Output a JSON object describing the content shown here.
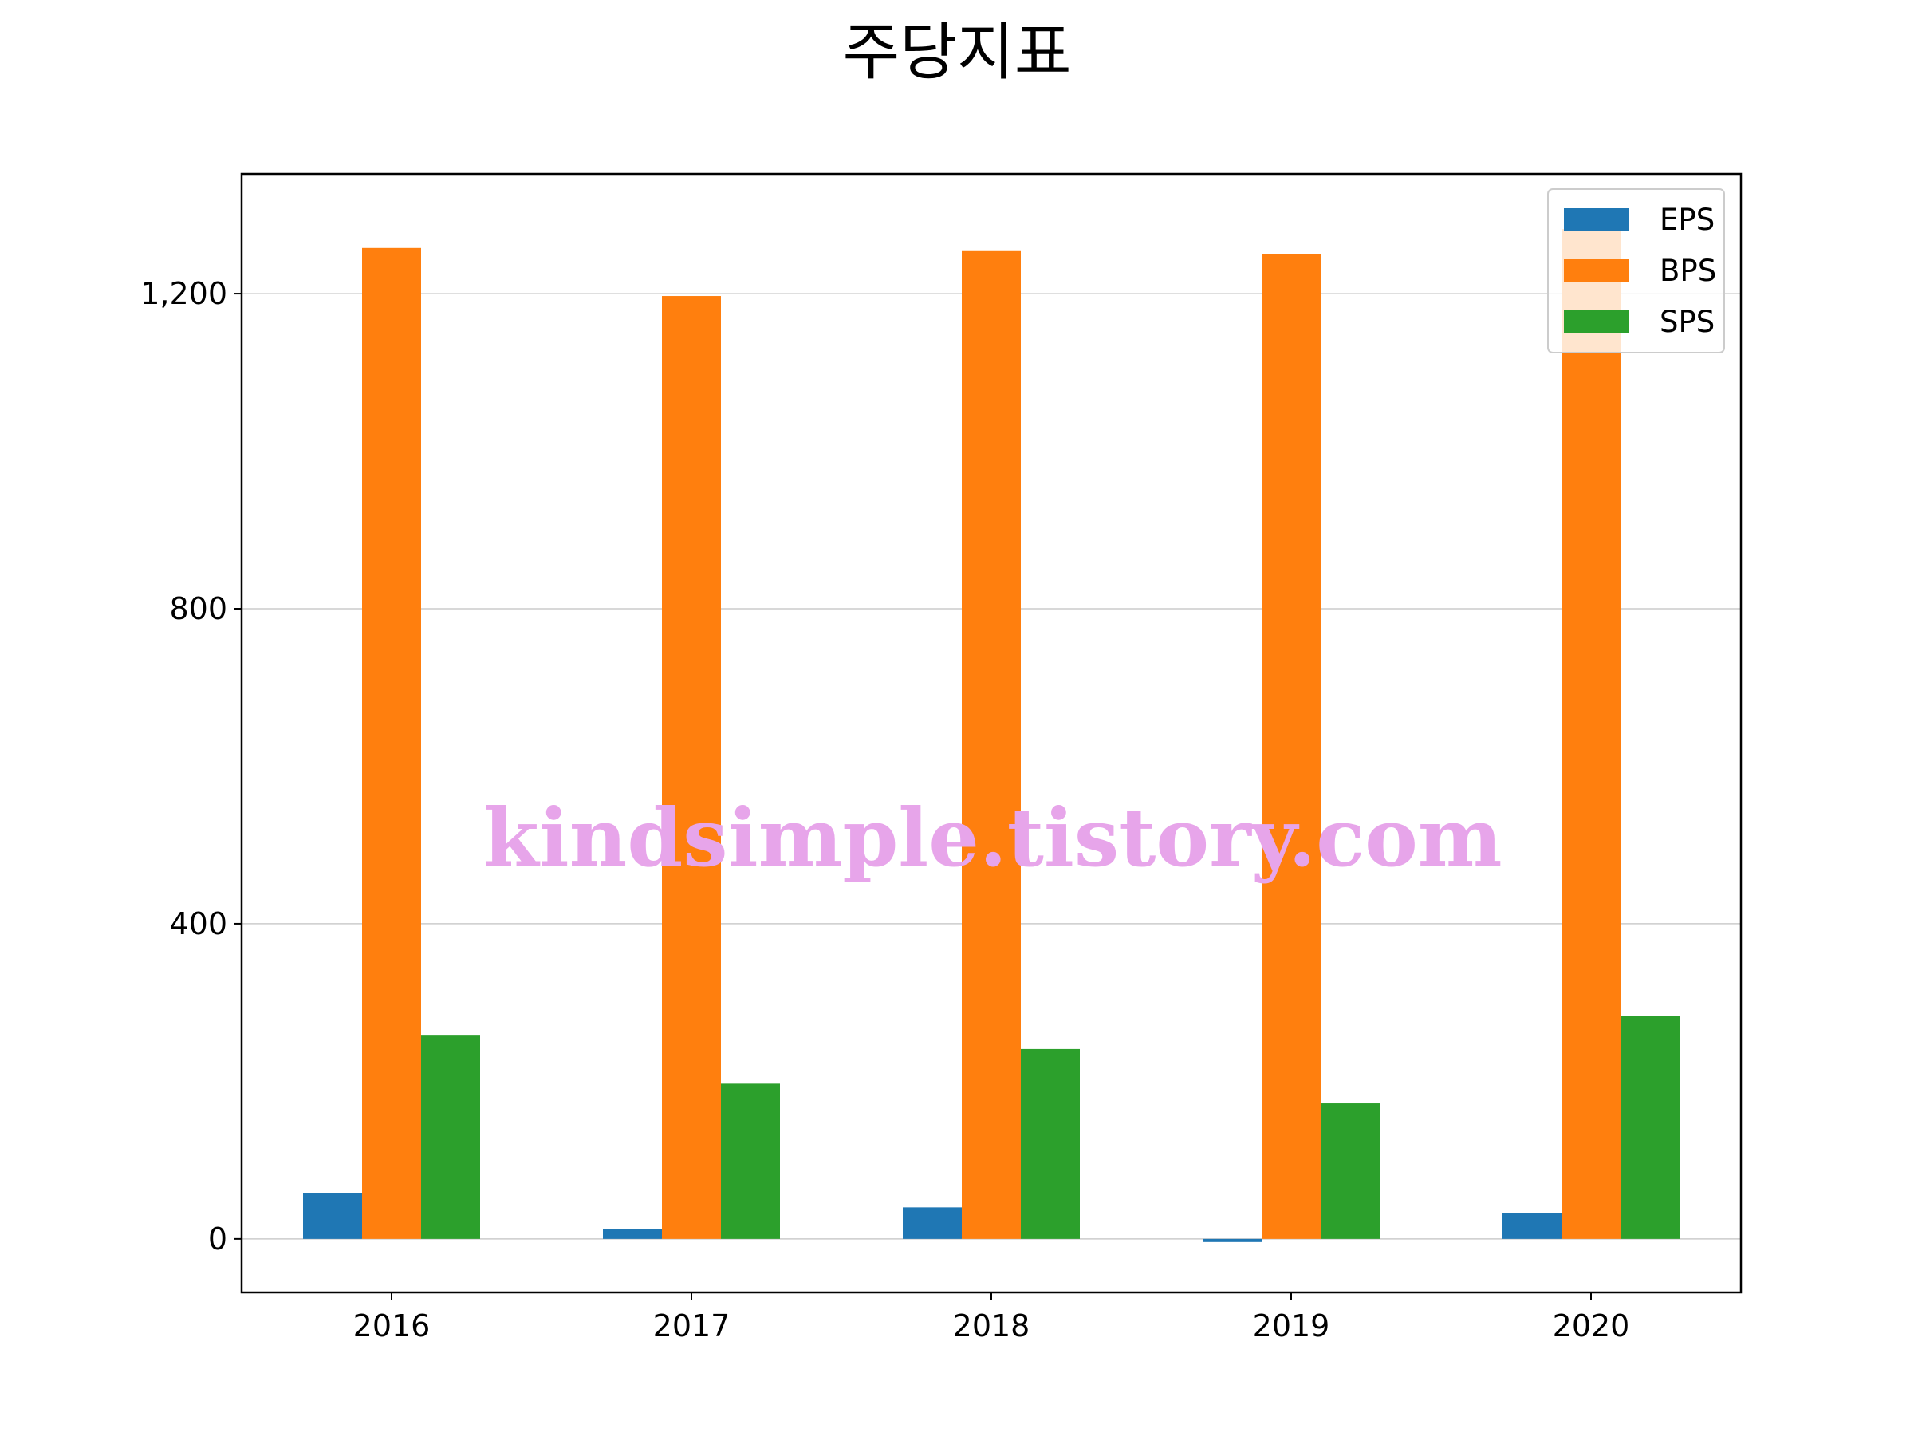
{
  "chart_data": {
    "type": "bar",
    "title": "주당지표",
    "xlabel": "",
    "ylabel": "",
    "categories": [
      "2016",
      "2017",
      "2018",
      "2019",
      "2020"
    ],
    "series": [
      {
        "name": "EPS",
        "color": "#1f77b4",
        "values": [
          58,
          13,
          40,
          -4,
          33
        ]
      },
      {
        "name": "BPS",
        "color": "#ff7f0e",
        "values": [
          1258,
          1197,
          1255,
          1250,
          1282
        ]
      },
      {
        "name": "SPS",
        "color": "#2ca02c",
        "values": [
          259,
          197,
          241,
          172,
          283
        ]
      }
    ],
    "ylim": [
      -68,
      1352
    ],
    "yticks": [
      0,
      400,
      800,
      1200
    ],
    "ytick_labels": [
      "0",
      "400",
      "800",
      "1,200"
    ],
    "grid": "horizontal",
    "legend_position": "upper right",
    "watermark": "kindsimple.tistory.com"
  }
}
